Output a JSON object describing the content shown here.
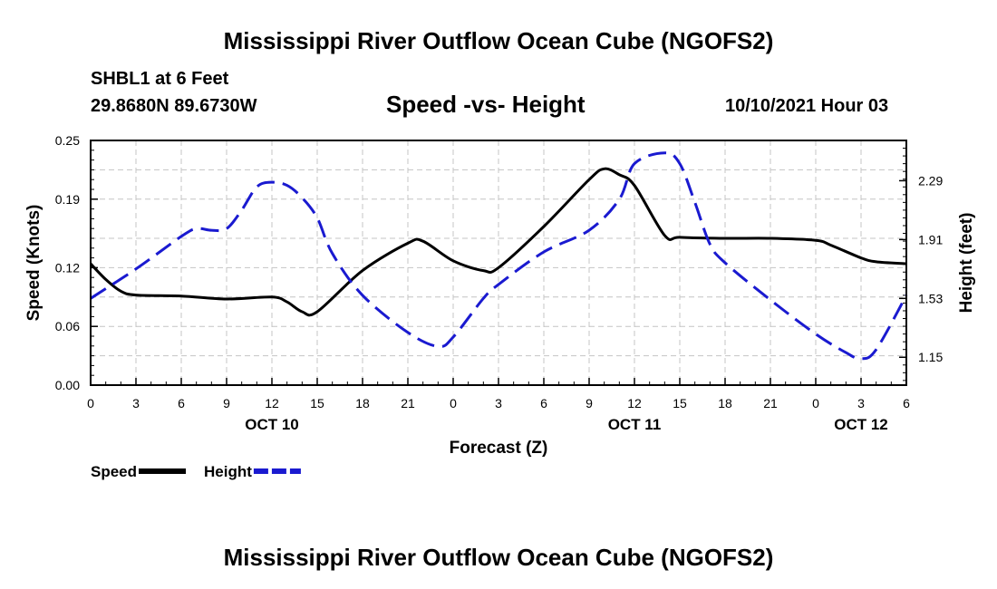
{
  "header": {
    "title": "Mississippi River Outflow Ocean Cube (NGOFS2)",
    "station": "SHBL1 at 6 Feet",
    "coords": "29.8680N  89.6730W",
    "subtitle": "Speed -vs- Height",
    "datetime": "10/10/2021 Hour 03"
  },
  "footer": {
    "title": "Mississippi River Outflow Ocean Cube (NGOFS2)"
  },
  "chart_data": {
    "type": "line",
    "title": "Speed -vs- Height",
    "xlabel": "Forecast (Z)",
    "ylabel": "Speed (Knots)",
    "y2label": "Height (feet)",
    "xlim": [
      0,
      54
    ],
    "ylim": [
      0,
      0.25
    ],
    "y2lim": [
      0.97,
      2.55
    ],
    "grid": true,
    "x_ticks": [
      0,
      3,
      6,
      9,
      12,
      15,
      18,
      21,
      24,
      27,
      30,
      33,
      36,
      39,
      42,
      45,
      48,
      51,
      54
    ],
    "x_tick_labels": [
      "0",
      "3",
      "6",
      "9",
      "12",
      "15",
      "18",
      "21",
      "0",
      "3",
      "6",
      "9",
      "12",
      "15",
      "18",
      "21",
      "0",
      "3",
      "6"
    ],
    "date_labels": [
      {
        "x": 12,
        "label": "OCT 10"
      },
      {
        "x": 36,
        "label": "OCT 11"
      },
      {
        "x": 51,
        "label": "OCT 12"
      }
    ],
    "y_ticks": [
      0.0,
      0.06,
      0.12,
      0.19,
      0.25
    ],
    "y_tick_labels": [
      "0.00",
      "0.06",
      "0.12",
      "0.19",
      "0.25"
    ],
    "y2_ticks": [
      1.15,
      1.53,
      1.91,
      2.29
    ],
    "y2_tick_labels": [
      "1.15",
      "1.53",
      "1.91",
      "2.29"
    ],
    "series": [
      {
        "name": "Speed",
        "axis": "left",
        "color": "#000000",
        "dash": "solid",
        "x": [
          0,
          1,
          2,
          3,
          6,
          9,
          12,
          13,
          14,
          15,
          18,
          21,
          22,
          24,
          26,
          27,
          30,
          33,
          34,
          35,
          36,
          38,
          39,
          42,
          45,
          48,
          49,
          51,
          52,
          54
        ],
        "y": [
          0.124,
          0.108,
          0.096,
          0.092,
          0.091,
          0.088,
          0.09,
          0.085,
          0.075,
          0.075,
          0.117,
          0.145,
          0.147,
          0.127,
          0.117,
          0.12,
          0.162,
          0.21,
          0.221,
          0.215,
          0.204,
          0.153,
          0.151,
          0.15,
          0.15,
          0.148,
          0.143,
          0.13,
          0.126,
          0.124
        ]
      },
      {
        "name": "Height",
        "axis": "right",
        "color": "#1a1ad0",
        "dash": "dashed",
        "x": [
          0,
          3,
          6,
          7,
          8,
          9,
          10,
          11,
          12,
          13,
          14,
          15,
          16,
          18,
          21,
          23,
          24,
          26,
          27,
          30,
          33,
          35,
          36,
          38,
          39,
          40,
          41,
          42,
          45,
          48,
          50,
          51,
          52,
          54
        ],
        "y": [
          1.53,
          1.72,
          1.93,
          1.98,
          1.97,
          1.98,
          2.1,
          2.25,
          2.28,
          2.26,
          2.18,
          2.05,
          1.82,
          1.55,
          1.31,
          1.22,
          1.28,
          1.53,
          1.62,
          1.83,
          1.97,
          2.17,
          2.4,
          2.47,
          2.4,
          2.15,
          1.88,
          1.76,
          1.52,
          1.3,
          1.18,
          1.14,
          1.2,
          1.55
        ]
      }
    ],
    "legend": [
      {
        "label": "Speed",
        "color": "#000000",
        "dash": "solid"
      },
      {
        "label": "Height",
        "color": "#1a1ad0",
        "dash": "dashed"
      }
    ],
    "legend_position": "bottom-left"
  }
}
